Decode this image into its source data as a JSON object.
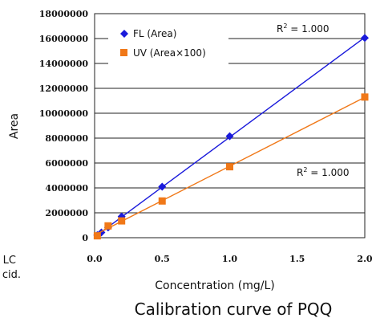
{
  "caption": "Calibration curve of PQQ",
  "left_fragments": [
    "LC",
    "cid."
  ],
  "chart_data": {
    "type": "scatter",
    "title": "",
    "xlabel": "Concentration (mg/L)",
    "ylabel": "Area",
    "xlim": [
      0,
      2.0
    ],
    "ylim": [
      0,
      18000000
    ],
    "x_ticks": [
      "0.0",
      "0.5",
      "1.0",
      "1.5",
      "2.0"
    ],
    "y_ticks": [
      "0",
      "2000000",
      "4000000",
      "6000000",
      "8000000",
      "10000000",
      "12000000",
      "14000000",
      "16000000",
      "18000000"
    ],
    "y_tick_values": [
      0,
      2000000,
      4000000,
      6000000,
      8000000,
      10000000,
      12000000,
      14000000,
      16000000,
      18000000
    ],
    "x_tick_values": [
      0,
      0.5,
      1.0,
      1.5,
      2.0
    ],
    "grid": "horizontal",
    "legend_position": "top-left",
    "series": [
      {
        "name": "FL (Area)",
        "marker": "diamond",
        "color": "#1a1adb",
        "trendline": true,
        "x": [
          0.02,
          0.05,
          0.1,
          0.2,
          0.5,
          1.0,
          2.0
        ],
        "y": [
          200000,
          420000,
          820000,
          1700000,
          4100000,
          8150000,
          16050000
        ]
      },
      {
        "name": "UV (Area×100)",
        "marker": "square",
        "color": "#f07818",
        "trendline": true,
        "x": [
          0.02,
          0.1,
          0.2,
          0.5,
          1.0,
          2.0
        ],
        "y": [
          150000,
          950000,
          1350000,
          2950000,
          5700000,
          11300000
        ]
      }
    ],
    "annotations": [
      {
        "text": "R",
        "superscript": "2",
        "suffix": " = 1.000"
      },
      {
        "text": "R",
        "superscript": "2",
        "suffix": " = 1.000"
      }
    ]
  }
}
